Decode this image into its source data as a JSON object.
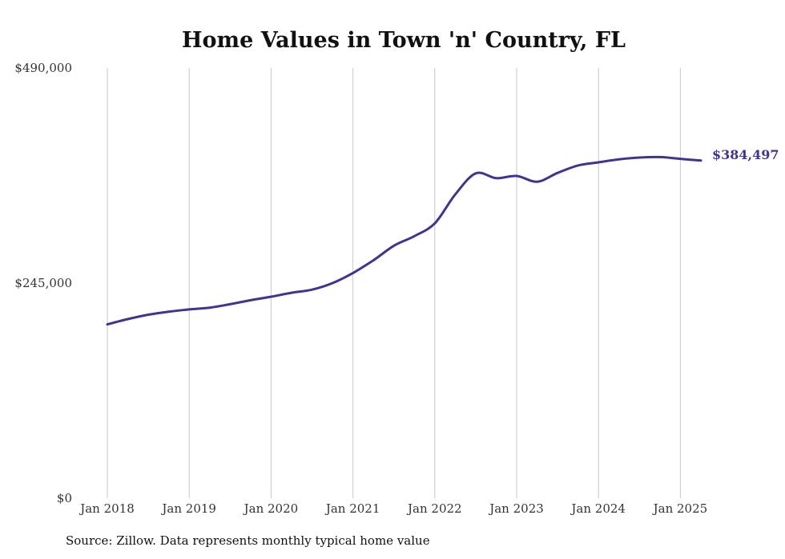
{
  "chart_data": {
    "type": "line",
    "title": "Home Values in Town 'n' Country, FL",
    "xlabel": "",
    "ylabel": "",
    "ylim": [
      0,
      490000
    ],
    "y_tick_values": [
      0,
      245000,
      490000
    ],
    "y_tick_labels": [
      "$0",
      "$245,000",
      "$490,000"
    ],
    "x_tick_labels": [
      "Jan 2018",
      "Jan 2019",
      "Jan 2020",
      "Jan 2021",
      "Jan 2022",
      "Jan 2023",
      "Jan 2024",
      "Jan 2025"
    ],
    "x_range": [
      "2018-01",
      "2025-04"
    ],
    "grid": "vertical",
    "line_color": "#3f3494",
    "end_label": "$384,497",
    "series": [
      {
        "x": [
          "2018-01",
          "2018-04",
          "2018-07",
          "2018-10",
          "2019-01",
          "2019-04",
          "2019-07",
          "2019-10",
          "2020-01",
          "2020-04",
          "2020-07",
          "2020-10",
          "2021-01",
          "2021-04",
          "2021-07",
          "2021-10",
          "2022-01",
          "2022-04",
          "2022-07",
          "2022-10",
          "2023-01",
          "2023-04",
          "2023-07",
          "2023-10",
          "2024-01",
          "2024-04",
          "2024-07",
          "2024-10",
          "2025-01",
          "2025-04"
        ],
        "values": [
          198000,
          204000,
          209000,
          212500,
          215000,
          217000,
          221000,
          225500,
          229500,
          234000,
          237500,
          245000,
          256500,
          271000,
          287500,
          298500,
          313000,
          346000,
          370000,
          364500,
          367000,
          360500,
          370500,
          379000,
          382500,
          386000,
          388000,
          388500,
          386500,
          384497
        ]
      }
    ]
  },
  "source": "Source: Zillow. Data represents monthly typical home value"
}
